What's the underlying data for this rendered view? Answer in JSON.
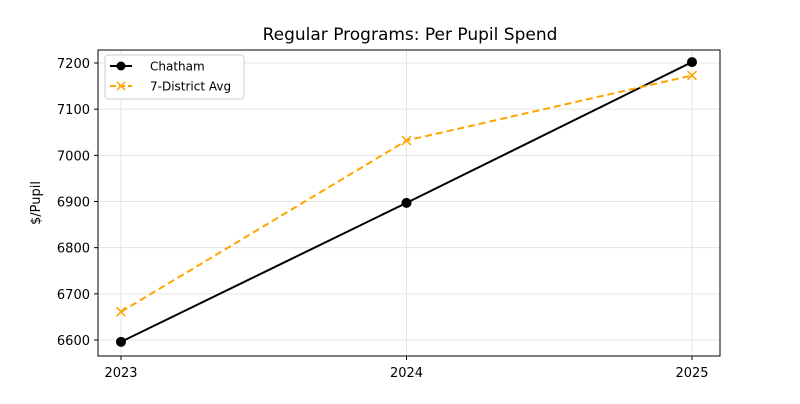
{
  "chart_data": {
    "type": "line",
    "title": "Regular Programs: Per Pupil Spend",
    "xlabel": "",
    "ylabel": "$/Pupil",
    "x": [
      "2023",
      "2024",
      "2025"
    ],
    "xticks": [
      "2023",
      "2024",
      "2025"
    ],
    "yticks": [
      6600,
      6700,
      6800,
      6900,
      7000,
      7100,
      7200
    ],
    "ylim": [
      6565,
      7232
    ],
    "grid": true,
    "legend": "top-left",
    "series": [
      {
        "name": "Chatham",
        "values": [
          6596,
          6897,
          7202
        ],
        "color": "#000000",
        "style": "solid",
        "marker": "circle"
      },
      {
        "name": "7-District Avg",
        "values": [
          6661,
          7032,
          7173
        ],
        "color": "#FFA500",
        "style": "dashed",
        "marker": "x"
      }
    ]
  }
}
